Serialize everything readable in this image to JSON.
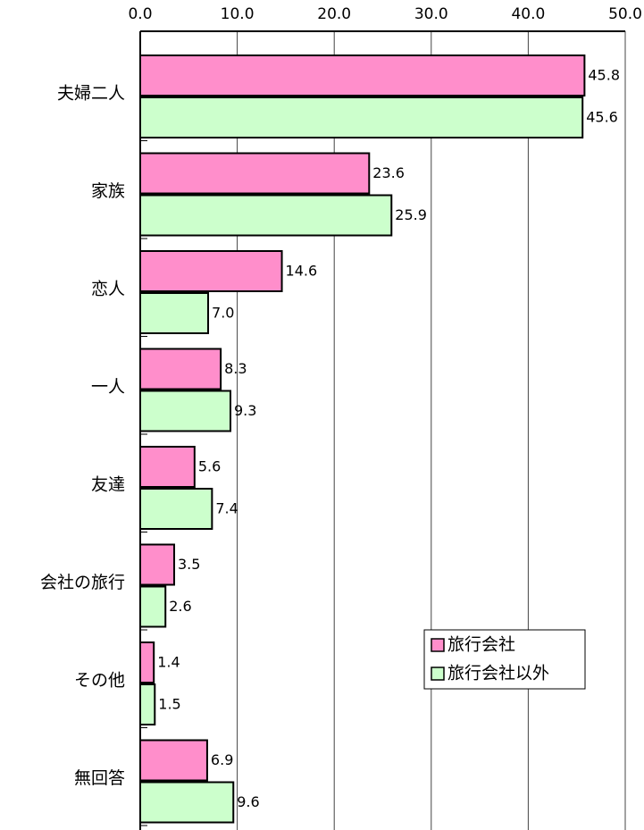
{
  "chart_data": {
    "type": "bar",
    "orientation": "horizontal",
    "categories": [
      "夫婦二人",
      "家族",
      "恋人",
      "一人",
      "友達",
      "会社の旅行",
      "その他",
      "無回答"
    ],
    "series": [
      {
        "name": "旅行会社",
        "color": "#ff8ecb",
        "values": [
          45.8,
          23.6,
          14.6,
          8.3,
          5.6,
          3.5,
          1.4,
          6.9
        ],
        "value_labels": [
          "45.8",
          "23.6",
          "14.6",
          "8.3",
          "5.6",
          "3.5",
          "1.4",
          "6.9"
        ]
      },
      {
        "name": "旅行会社以外",
        "color": "#ccffcc",
        "values": [
          45.6,
          25.9,
          7.0,
          9.3,
          7.4,
          2.6,
          1.5,
          9.6
        ],
        "value_labels": [
          "45.6",
          "25.9",
          "7.0",
          "9.3",
          "7.4",
          "2.6",
          "1.5",
          "9.6"
        ]
      }
    ],
    "xlim": [
      0,
      50
    ],
    "xticks": [
      {
        "value": 0,
        "label": "0.0"
      },
      {
        "value": 10,
        "label": "10.0"
      },
      {
        "value": 20,
        "label": "20.0"
      },
      {
        "value": 30,
        "label": "30.0"
      },
      {
        "value": 40,
        "label": "40.0"
      },
      {
        "value": 50,
        "label": "50.0"
      }
    ],
    "grid": true,
    "legend": "lower right"
  }
}
